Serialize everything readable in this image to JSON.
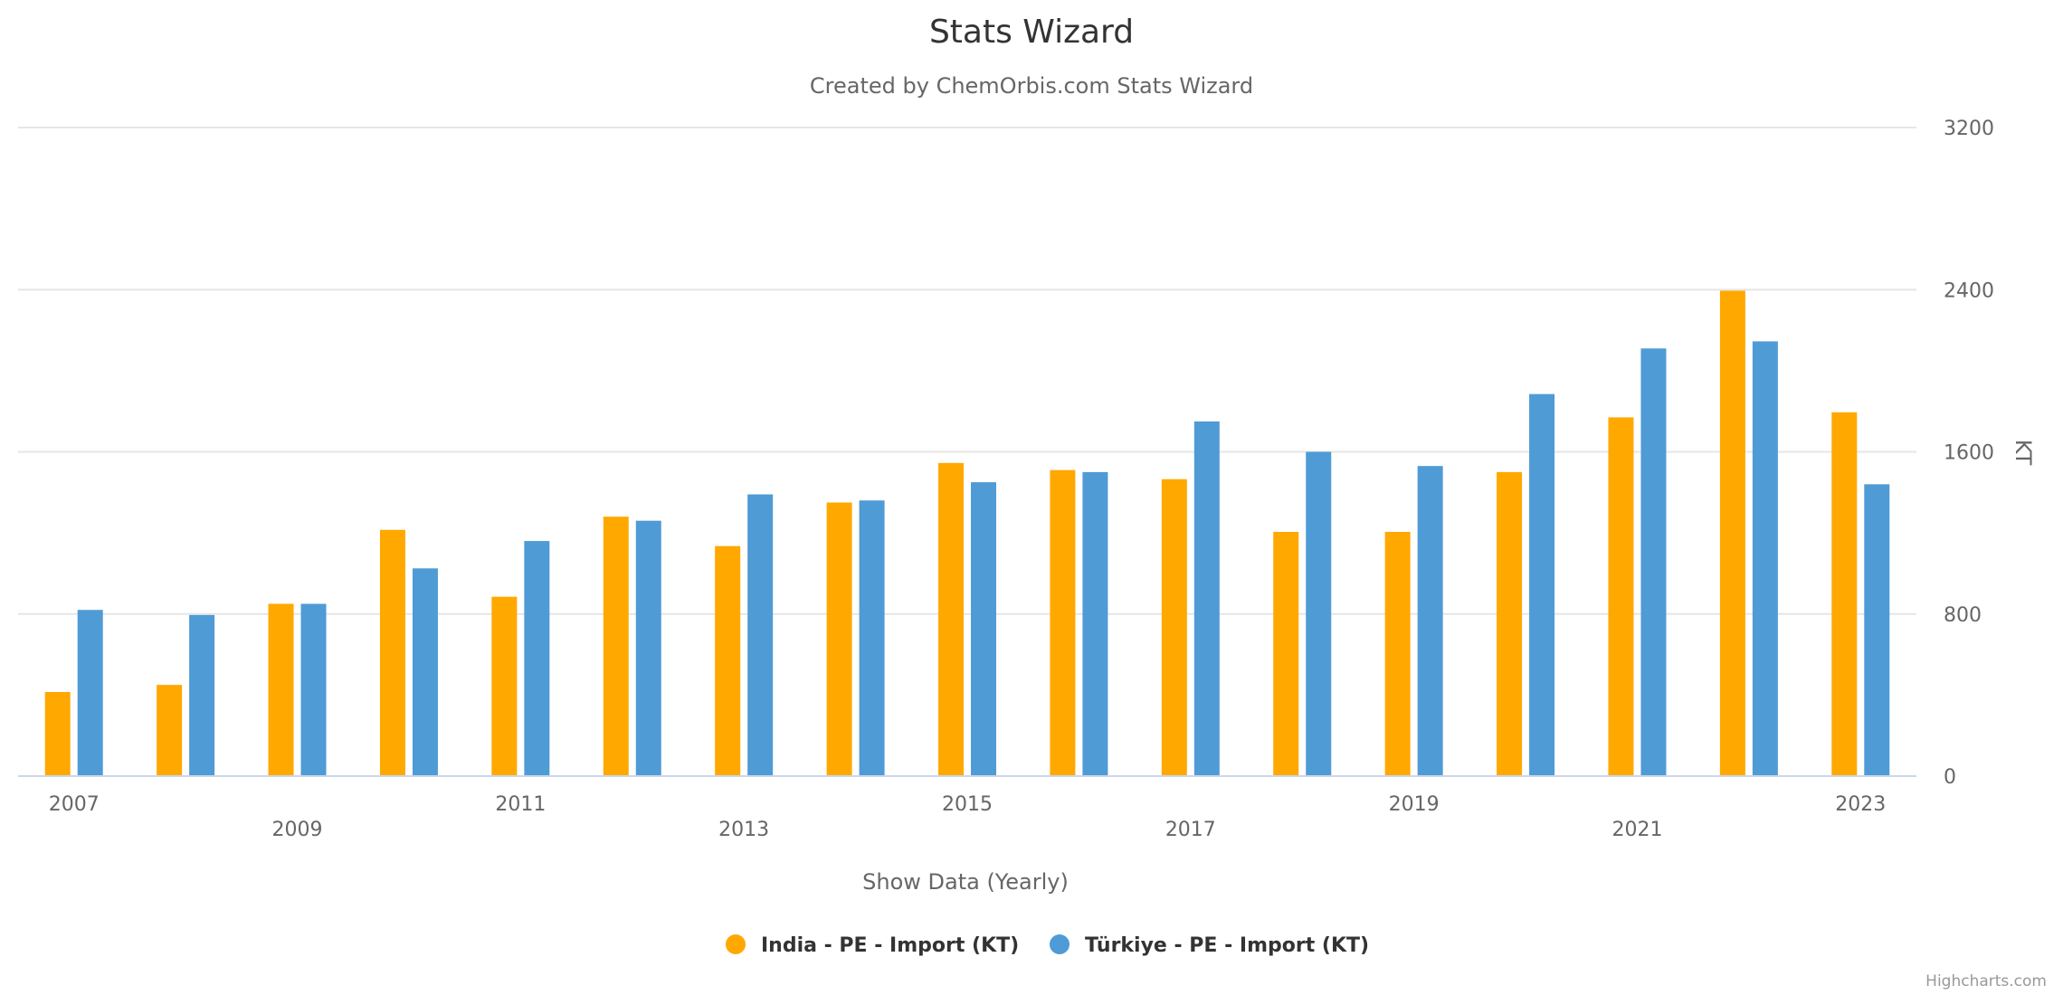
{
  "chart_data": {
    "type": "bar",
    "title": "Stats Wizard",
    "subtitle": "Created by ChemOrbis.com Stats Wizard",
    "xlabel": "Show Data (Yearly)",
    "ylabel": "KT",
    "ylim": [
      0,
      3200
    ],
    "yticks": [
      0,
      800,
      1600,
      2400,
      3200
    ],
    "grid": true,
    "legend_position": "bottom-center",
    "categories": [
      "2007",
      "2008",
      "2009",
      "2010",
      "2011",
      "2012",
      "2013",
      "2014",
      "2015",
      "2016",
      "2017",
      "2018",
      "2019",
      "2020",
      "2021",
      "2022",
      "2023"
    ],
    "x_tick_labels": [
      "2007",
      "2009",
      "2011",
      "2013",
      "2015",
      "2017",
      "2019",
      "2021",
      "2023"
    ],
    "series": [
      {
        "name": "India - PE - Import (KT)",
        "color": "#ffa800",
        "values": [
          415,
          450,
          850,
          1215,
          885,
          1280,
          1135,
          1350,
          1545,
          1510,
          1465,
          1205,
          1205,
          1500,
          1770,
          2395,
          1795
        ]
      },
      {
        "name": "Türkiye - PE - Import (KT)",
        "color": "#4f9bd5",
        "values": [
          820,
          795,
          850,
          1025,
          1160,
          1260,
          1390,
          1360,
          1450,
          1500,
          1750,
          1600,
          1530,
          1885,
          2110,
          2145,
          1440
        ]
      }
    ]
  },
  "credits": "Highcharts.com"
}
